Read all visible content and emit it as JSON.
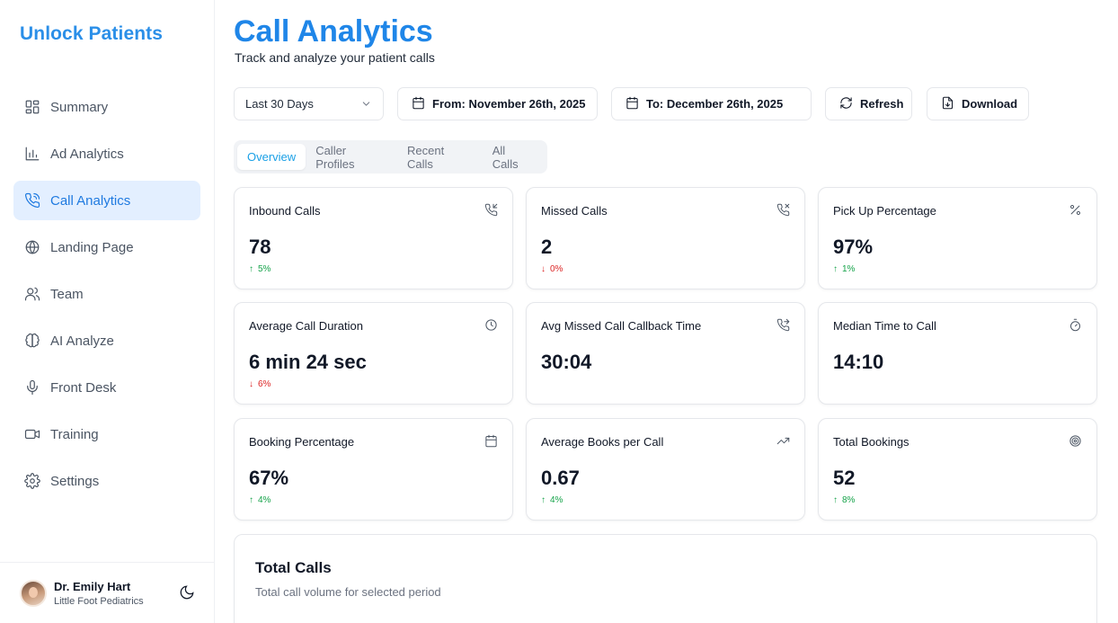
{
  "app": {
    "brand": "Unlock Patients"
  },
  "sidebar": {
    "items": [
      {
        "label": "Summary",
        "icon": "grid-icon"
      },
      {
        "label": "Ad Analytics",
        "icon": "bar-chart-icon"
      },
      {
        "label": "Call Analytics",
        "icon": "phone-icon",
        "active": true
      },
      {
        "label": "Landing Page",
        "icon": "globe-icon"
      },
      {
        "label": "Team",
        "icon": "users-icon"
      },
      {
        "label": "AI Analyze",
        "icon": "brain-icon"
      },
      {
        "label": "Front Desk",
        "icon": "microphone-icon"
      },
      {
        "label": "Training",
        "icon": "video-icon"
      },
      {
        "label": "Settings",
        "icon": "gear-icon"
      }
    ],
    "user": {
      "name": "Dr. Emily Hart",
      "org": "Little Foot Pediatrics"
    }
  },
  "header": {
    "title": "Call Analytics",
    "subtitle": "Track and analyze your patient calls"
  },
  "toolbar": {
    "range_select": "Last 30 Days",
    "from_label": "From: November 26th, 2025",
    "to_label": "To: December 26th, 2025",
    "refresh_label": "Refresh",
    "download_label": "Download"
  },
  "tabs": [
    {
      "label": "Overview",
      "active": true
    },
    {
      "label": "Caller Profiles"
    },
    {
      "label": "Recent Calls"
    },
    {
      "label": "All Calls"
    }
  ],
  "cards": [
    {
      "title": "Inbound Calls",
      "value": "78",
      "change": "5%",
      "direction": "up",
      "icon": "phone-incoming-icon"
    },
    {
      "title": "Missed Calls",
      "value": "2",
      "change": "0%",
      "direction": "down",
      "icon": "phone-missed-icon"
    },
    {
      "title": "Pick Up Percentage",
      "value": "97%",
      "change": "1%",
      "direction": "up",
      "icon": "percent-icon"
    },
    {
      "title": "Average Call Duration",
      "value": "6 min 24 sec",
      "change": "6%",
      "direction": "down",
      "icon": "clock-icon"
    },
    {
      "title": "Avg Missed Call Callback Time",
      "value": "30:04",
      "change": "",
      "direction": "",
      "icon": "phone-forwarded-icon"
    },
    {
      "title": "Median Time to Call",
      "value": "14:10",
      "change": "",
      "direction": "",
      "icon": "timer-icon"
    },
    {
      "title": "Booking Percentage",
      "value": "67%",
      "change": "4%",
      "direction": "up",
      "icon": "calendar-icon"
    },
    {
      "title": "Average Books per Call",
      "value": "0.67",
      "change": "4%",
      "direction": "up",
      "icon": "trending-up-icon"
    },
    {
      "title": "Total Bookings",
      "value": "52",
      "change": "8%",
      "direction": "up",
      "icon": "target-icon"
    }
  ],
  "total_calls": {
    "title": "Total Calls",
    "subtitle": "Total call volume for selected period"
  },
  "colors": {
    "brand": "#2b8fe8",
    "active_bg": "#e3efff",
    "positive": "#16a34a",
    "negative": "#dc2626"
  }
}
